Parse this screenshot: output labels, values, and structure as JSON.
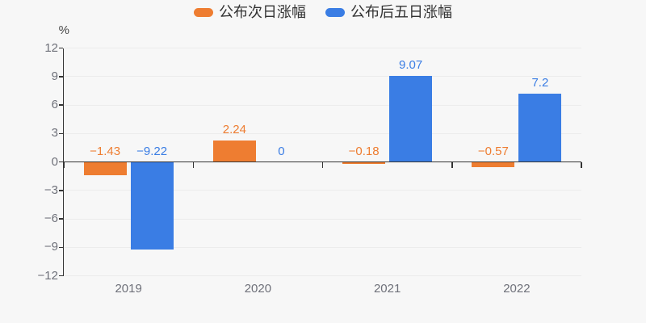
{
  "chart_data": {
    "type": "bar",
    "title": "",
    "categories": [
      "2019",
      "2020",
      "2021",
      "2022"
    ],
    "series": [
      {
        "name": "公布次日涨幅",
        "color": "#ee7d31",
        "values": [
          -1.43,
          2.24,
          -0.18,
          -0.57
        ],
        "labels": [
          "−1.43",
          "2.24",
          "−0.18",
          "−0.57"
        ]
      },
      {
        "name": "公布后五日涨幅",
        "color": "#3a7de4",
        "values": [
          -9.22,
          0,
          9.07,
          7.2
        ],
        "labels": [
          "−9.22",
          "0",
          "9.07",
          "7.2"
        ]
      }
    ],
    "xlabel": "",
    "ylabel": "%",
    "ylim": [
      -12,
      12
    ],
    "yticks": [
      12,
      9,
      6,
      3,
      0,
      -3,
      -6,
      -9,
      -12
    ],
    "grid": true,
    "legend_position": "top"
  },
  "colors": {
    "background": "#f7f7f7",
    "axis_line": "#333333",
    "grid_line": "#ececec",
    "axis_label": "#6e7079",
    "legend_text": "#333333"
  }
}
